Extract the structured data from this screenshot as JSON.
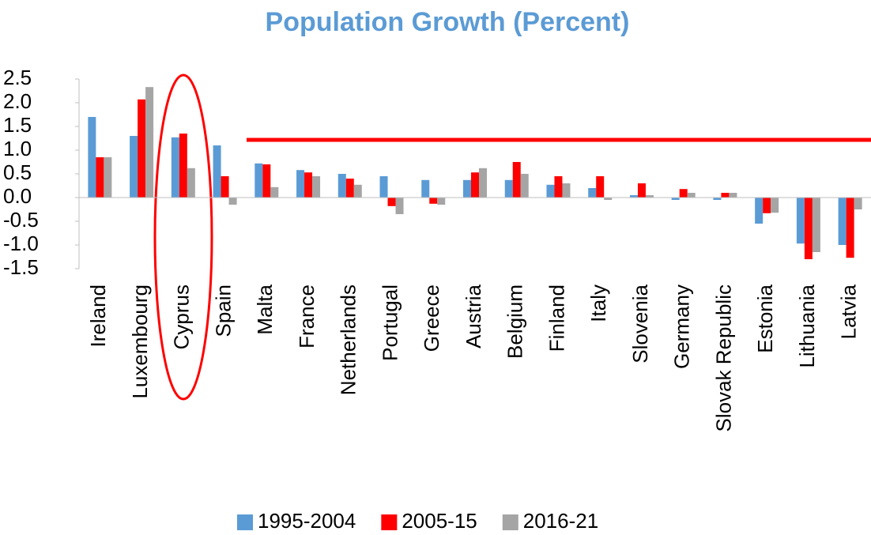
{
  "chart_data": {
    "type": "bar",
    "title": "Population Growth (Percent)",
    "categories": [
      "Ireland",
      "Luxembourg",
      "Cyprus",
      "Spain",
      "Malta",
      "France",
      "Netherlands",
      "Portugal",
      "Greece",
      "Austria",
      "Belgium",
      "Finland",
      "Italy",
      "Slovenia",
      "Germany",
      "Slovak Republic",
      "Estonia",
      "Lithuania",
      "Latvia"
    ],
    "series": [
      {
        "name": "1995-2004",
        "color": "#5b9bd5",
        "values": [
          1.7,
          1.3,
          1.27,
          1.1,
          0.72,
          0.58,
          0.5,
          0.45,
          0.37,
          0.37,
          0.37,
          0.27,
          0.2,
          0.05,
          -0.05,
          -0.05,
          -0.55,
          -0.97,
          -1.0
        ]
      },
      {
        "name": "2005-15",
        "color": "#ff0000",
        "values": [
          0.85,
          2.07,
          1.35,
          0.45,
          0.7,
          0.53,
          0.4,
          -0.18,
          -0.13,
          0.53,
          0.75,
          0.45,
          0.45,
          0.3,
          0.18,
          0.1,
          -0.33,
          -1.3,
          -1.27
        ]
      },
      {
        "name": "2016-21",
        "color": "#a5a5a5",
        "values": [
          0.85,
          2.33,
          0.62,
          -0.15,
          0.22,
          0.45,
          0.27,
          -0.35,
          -0.15,
          0.62,
          0.5,
          0.3,
          -0.05,
          0.05,
          0.1,
          0.1,
          -0.32,
          -1.15,
          -0.25
        ]
      }
    ],
    "ylim": [
      -1.5,
      2.5
    ],
    "yticks": [
      2.5,
      {
        "value": 2,
        "label": "2.0"
      },
      1.5,
      {
        "value": 1,
        "label": "1.0"
      },
      0.5,
      {
        "value": 0,
        "label": "0.0"
      },
      -0.5,
      {
        "value": -1,
        "label": "-1.0"
      },
      -1.5
    ]
  }
}
